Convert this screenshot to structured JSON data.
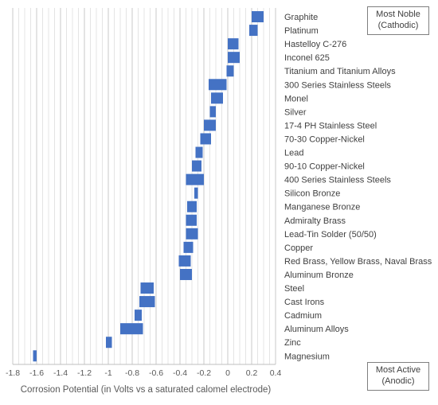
{
  "chart_data": {
    "type": "bar",
    "orientation": "horizontal-floating",
    "xlabel": "Corrosion Potential (in Volts vs a saturated calomel electrode)",
    "xlim": [
      -1.8,
      0.4
    ],
    "xticks": [
      "-1.8",
      "-1.6",
      "-1.4",
      "-1.2",
      "-1",
      "-0.8",
      "-0.6",
      "-0.4",
      "-0.2",
      "0",
      "0.2",
      "0.4"
    ],
    "grid": true,
    "series_color": "#4472c4",
    "categories": [
      "Graphite",
      "Platinum",
      "Hastelloy C-276",
      "Inconel 625",
      "Titanium and Titanium Alloys",
      "300 Series Stainless Steels",
      "Monel",
      "Silver",
      "17-4 PH Stainless Steel",
      "70-30 Copper-Nickel",
      "Lead",
      "90-10 Copper-Nickel",
      "400 Series Stainless Steels",
      "Silicon Bronze",
      "Manganese Bronze",
      "Admiralty Brass",
      "Lead-Tin Solder (50/50)",
      "Copper",
      "Red Brass, Yellow Brass, Naval Brass",
      "Aluminum Bronze",
      "Steel",
      "Cast Irons",
      "Cadmium",
      "Aluminum Alloys",
      "Zinc",
      "Magnesium"
    ],
    "ranges": [
      [
        0.2,
        0.3
      ],
      [
        0.18,
        0.25
      ],
      [
        0.0,
        0.09
      ],
      [
        0.0,
        0.1
      ],
      [
        -0.01,
        0.05
      ],
      [
        -0.16,
        -0.01
      ],
      [
        -0.14,
        -0.04
      ],
      [
        -0.15,
        -0.1
      ],
      [
        -0.2,
        -0.1
      ],
      [
        -0.23,
        -0.14
      ],
      [
        -0.27,
        -0.21
      ],
      [
        -0.3,
        -0.22
      ],
      [
        -0.35,
        -0.2
      ],
      [
        -0.28,
        -0.25
      ],
      [
        -0.34,
        -0.26
      ],
      [
        -0.35,
        -0.26
      ],
      [
        -0.35,
        -0.25
      ],
      [
        -0.37,
        -0.29
      ],
      [
        -0.41,
        -0.31
      ],
      [
        -0.4,
        -0.3
      ],
      [
        -0.73,
        -0.62
      ],
      [
        -0.74,
        -0.61
      ],
      [
        -0.78,
        -0.72
      ],
      [
        -0.9,
        -0.71
      ],
      [
        -1.02,
        -0.97
      ],
      [
        -1.63,
        -1.6
      ]
    ]
  },
  "annotations": {
    "most_noble_line1": "Most Noble",
    "most_noble_line2": "(Cathodic)",
    "most_active_line1": "Most Active",
    "most_active_line2": "(Anodic)"
  }
}
